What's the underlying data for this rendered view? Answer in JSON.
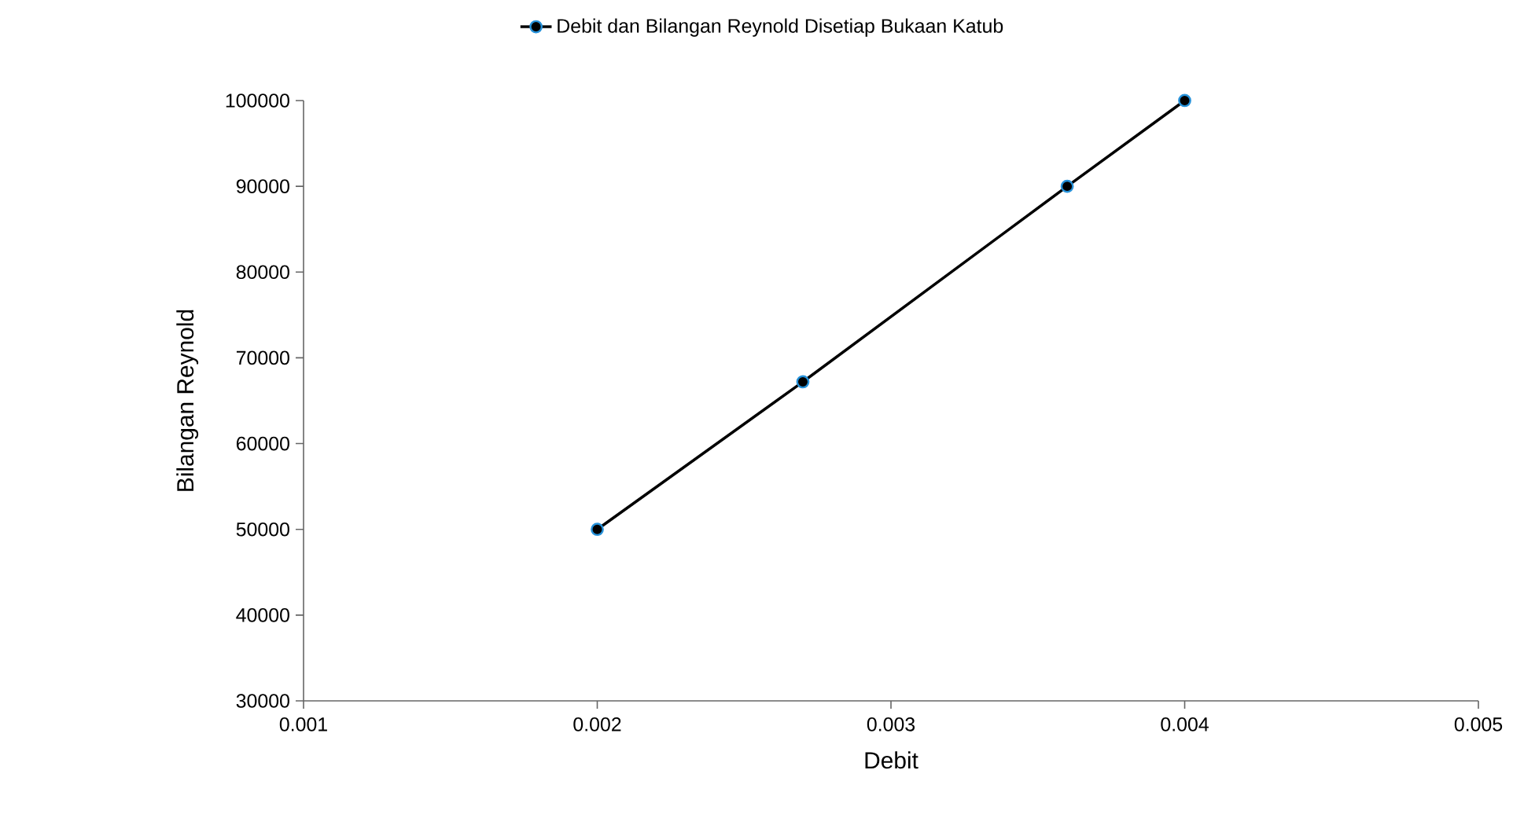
{
  "chart_data": {
    "type": "line",
    "xlabel": "Debit",
    "ylabel": "Bilangan Reynold",
    "x": [
      0.002,
      0.0027,
      0.0036,
      0.004
    ],
    "series": [
      {
        "name": "Debit dan Bilangan Reynold Disetiap Bukaan Katub",
        "color": "#000000",
        "values": [
          50000,
          67200,
          90000,
          100000
        ]
      }
    ],
    "xlim": [
      0.001,
      0.005
    ],
    "xticks": [
      0.001,
      0.002,
      0.003,
      0.004,
      0.005
    ],
    "ylim": [
      30000,
      100000
    ],
    "yticks": [
      30000,
      40000,
      50000,
      60000,
      70000,
      80000,
      90000,
      100000
    ],
    "legend": "top",
    "marker": "circle",
    "line_style": "solid"
  }
}
